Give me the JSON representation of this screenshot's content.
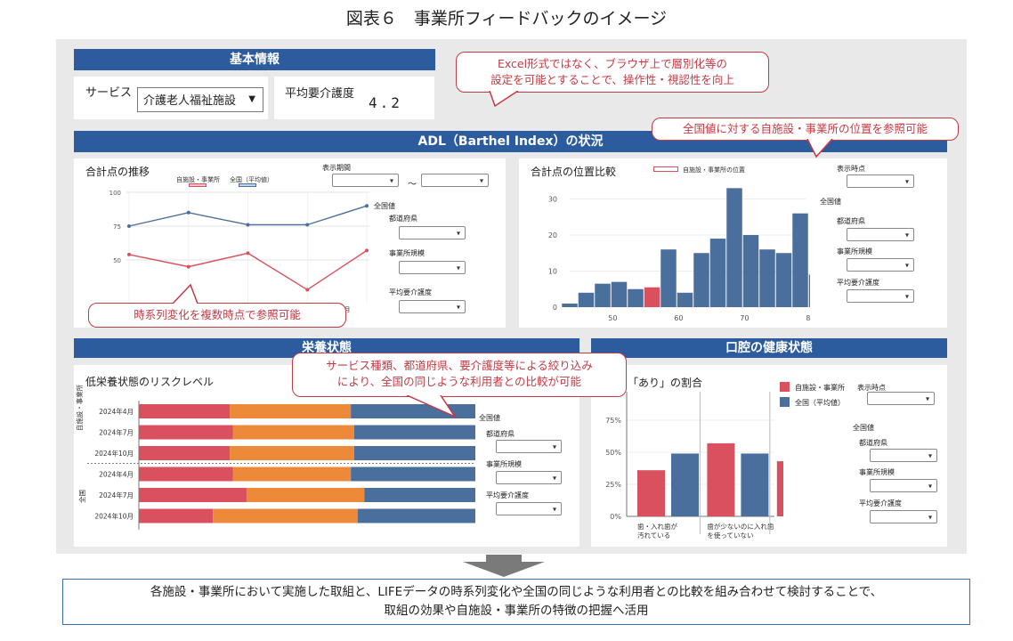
{
  "page_title": "図表６　事業所フィードバックのイメージ",
  "basic": {
    "header": "基本情報",
    "service_label": "サービス",
    "service_value": "介護老人福祉施設",
    "avg_care_label": "平均要介護度",
    "avg_care_value": "4.2"
  },
  "callouts": {
    "excel": "Excel形式ではなく、ブラウザ上で層別化等の\n設定を可能とすることで、操作性・視認性を向上",
    "position": "全国値に対する自施設・事業所の位置を参照可能",
    "timeseries": "時系列変化を複数時点で参照可能",
    "filter": "サービス種類、都道府県、要介護度等による絞り込み\nにより、全国の同じような利用者との比較が可能"
  },
  "adl": {
    "header": "ADL（Barthel Index）の状況",
    "trend_title": "合計点の推移",
    "legend_self": "自施設・事業所",
    "legend_national": "全国（平均値）",
    "period_label": "表示期間",
    "tilde": "～",
    "national_label": "全国値",
    "pref_label": "都道府県",
    "scale_label": "事業所規模",
    "avg_care_label": "平均要介護度",
    "x_last_label": "9月",
    "position_title": "合計点の位置比較",
    "position_legend": "自施設・事業所の位置",
    "display_time_label": "表示時点"
  },
  "nutrition": {
    "header": "栄養状態",
    "title": "低栄養状態のリスクレベル",
    "group_self": "自施設・事業所",
    "group_national": "全国",
    "national_label": "全国値",
    "pref_label": "都道府県",
    "scale_label": "事業所規模",
    "avg_care_label": "平均要介護度"
  },
  "oral": {
    "header": "口腔の健康状態",
    "title": "「あり」の割合",
    "legend_self": "自施設・事業所",
    "legend_national": "全国（平均値）",
    "display_time_label": "表示時点",
    "national_label": "全国値",
    "pref_label": "都道府県",
    "scale_label": "事業所規模",
    "avg_care_label": "平均要介護度"
  },
  "bottom_text": "各施設・事業所において実施した取組と、LIFEデータの時系列変化や全国の同じような利用者との比較を組み合わせて検討することで、\n取組の効果や自施設・事業所の特徴の把握へ活用",
  "colors": {
    "band": "#2c5c9e",
    "self": "#d9505e",
    "national": "#4a6f9c",
    "orange": "#ec8a3a",
    "callout": "#c33a45"
  },
  "chart_data": [
    {
      "type": "line",
      "title": "合計点の推移",
      "ylim": [
        0,
        100
      ],
      "yticks": [
        50,
        75,
        100
      ],
      "x": [
        1,
        2,
        3,
        4,
        5
      ],
      "series": [
        {
          "name": "自施設・事業所",
          "values": [
            54,
            45,
            55,
            28,
            57
          ]
        },
        {
          "name": "全国（平均値）",
          "values": [
            75,
            85,
            76,
            76,
            90
          ]
        }
      ]
    },
    {
      "type": "bar",
      "title": "合計点の位置比較",
      "xticks": [
        50,
        60,
        70,
        80
      ],
      "yticks": [
        0,
        10,
        20,
        30
      ],
      "x": [
        44,
        46.5,
        49,
        51.5,
        54,
        56.5,
        59,
        61.5,
        64,
        66.5,
        69,
        71.5,
        74,
        76.5,
        79,
        81.5
      ],
      "values": [
        1,
        4,
        6.5,
        7,
        5,
        5.5,
        16,
        4,
        15,
        19,
        33,
        20,
        16,
        15,
        26,
        9
      ],
      "highlight_index": 5,
      "series_name": "自施設・事業所の位置"
    },
    {
      "type": "bar",
      "title": "低栄養状態のリスクレベル",
      "stacked": true,
      "orientation": "horizontal",
      "categories": [
        "2024年4月",
        "2024年7月",
        "2024年10月",
        "2024年4月",
        "2024年7月",
        "2024年10月"
      ],
      "groups": [
        "自施設・事業所",
        "自施設・事業所",
        "自施設・事業所",
        "全国",
        "全国",
        "全国"
      ],
      "series": [
        {
          "values": [
            27,
            28,
            27,
            28,
            32,
            22
          ]
        },
        {
          "values": [
            36,
            36,
            37,
            35,
            35,
            43
          ]
        },
        {
          "values": [
            37,
            36,
            36,
            37,
            33,
            35
          ]
        }
      ]
    },
    {
      "type": "bar",
      "title": "「あり」の割合",
      "yticks": [
        "0%",
        "25%",
        "50%",
        "75%"
      ],
      "ylim": [
        0,
        80
      ],
      "categories": [
        "歯・入れ歯が\n汚れている",
        "歯が少ないのに入れ歯\nを使っていない",
        "むせやすい"
      ],
      "series": [
        {
          "name": "自施設・事業所",
          "values": [
            36,
            57,
            43
          ]
        },
        {
          "name": "全国（平均値）",
          "values": [
            49,
            49,
            49
          ]
        }
      ]
    }
  ]
}
